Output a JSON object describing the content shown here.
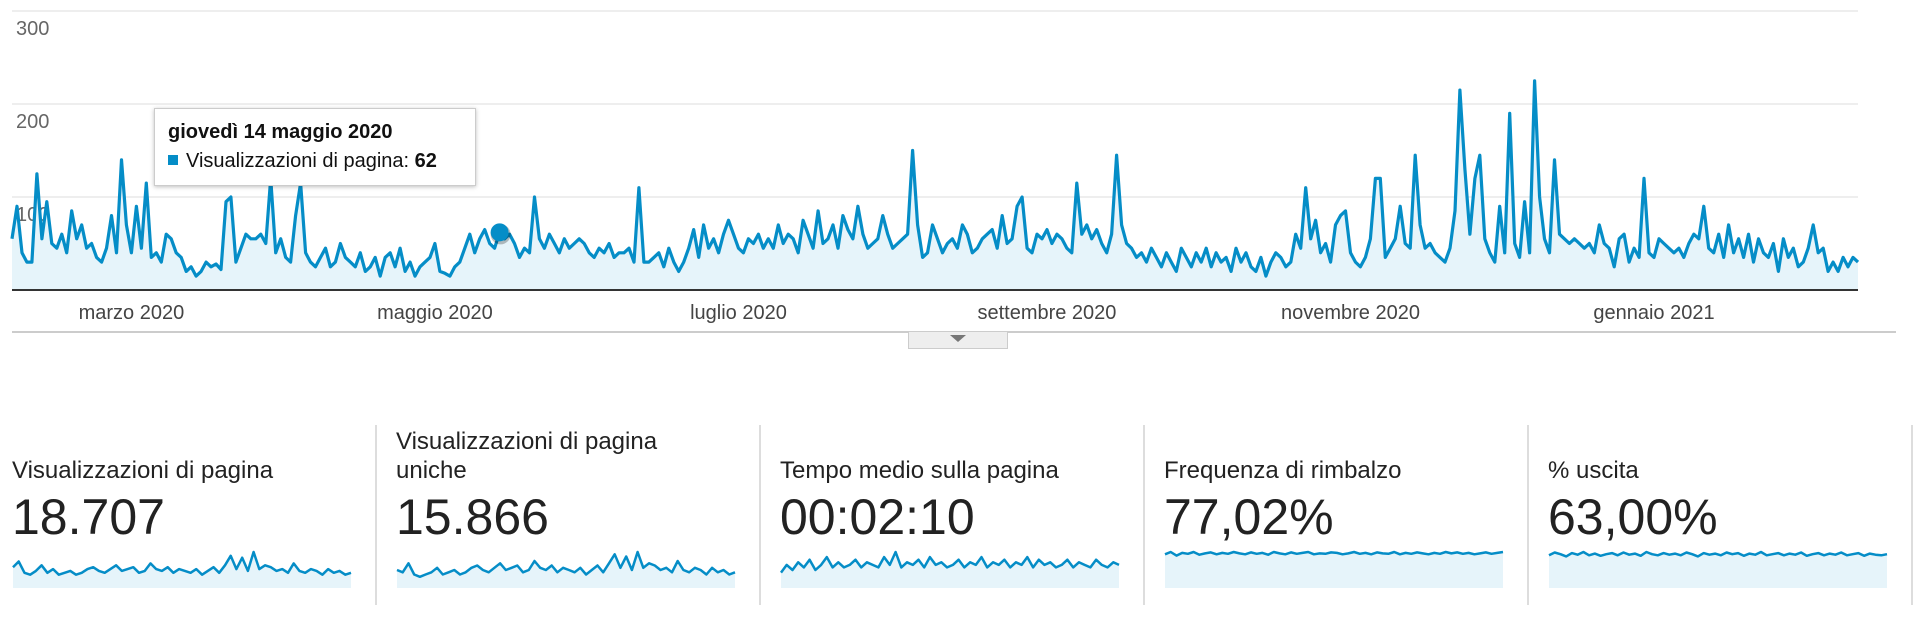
{
  "chart_data": {
    "type": "line",
    "categories": [
      null,
      null,
      null,
      null,
      null,
      null,
      null,
      null,
      null,
      null,
      null,
      null,
      null,
      null,
      null,
      null,
      null,
      null,
      null,
      null,
      null,
      null,
      null,
      null,
      "marzo 2020",
      null,
      null,
      null,
      null,
      null,
      null,
      null,
      null,
      null,
      null,
      null,
      null,
      null,
      null,
      null,
      null,
      null,
      null,
      null,
      null,
      null,
      null,
      null,
      null,
      null,
      null,
      null,
      null,
      null,
      null,
      null,
      null,
      null,
      null,
      null,
      null,
      null,
      null,
      null,
      null,
      null,
      null,
      null,
      null,
      null,
      null,
      null,
      null,
      null,
      null,
      null,
      null,
      null,
      null,
      null,
      null,
      null,
      null,
      null,
      null,
      "maggio 2020",
      null,
      null,
      null,
      null,
      null,
      null,
      null,
      null,
      null,
      null,
      null,
      null,
      null,
      null,
      null,
      null,
      null,
      null,
      null,
      null,
      null,
      null,
      null,
      null,
      null,
      null,
      null,
      null,
      null,
      null,
      null,
      null,
      null,
      null,
      null,
      null,
      null,
      null,
      null,
      null,
      null,
      null,
      null,
      null,
      null,
      null,
      null,
      null,
      null,
      null,
      null,
      null,
      null,
      null,
      null,
      null,
      null,
      null,
      null,
      null,
      "luglio 2020",
      null,
      null,
      null,
      null,
      null,
      null,
      null,
      null,
      null,
      null,
      null,
      null,
      null,
      null,
      null,
      null,
      null,
      null,
      null,
      null,
      null,
      null,
      null,
      null,
      null,
      null,
      null,
      null,
      null,
      null,
      null,
      null,
      null,
      null,
      null,
      null,
      null,
      null,
      null,
      null,
      null,
      null,
      null,
      null,
      null,
      null,
      null,
      null,
      null,
      null,
      null,
      null,
      null,
      null,
      null,
      null,
      null,
      null,
      null,
      null,
      null,
      "settembre 2020",
      null,
      null,
      null,
      null,
      null,
      null,
      null,
      null,
      null,
      null,
      null,
      null,
      null,
      null,
      null,
      null,
      null,
      null,
      null,
      null,
      null,
      null,
      null,
      null,
      null,
      null,
      null,
      null,
      null,
      null,
      null,
      null,
      null,
      null,
      null,
      null,
      null,
      null,
      null,
      null,
      null,
      null,
      null,
      null,
      null,
      null,
      null,
      null,
      null,
      null,
      null,
      null,
      null,
      null,
      null,
      null,
      null,
      null,
      null,
      null,
      "novembre 2020",
      null,
      null,
      null,
      null,
      null,
      null,
      null,
      null,
      null,
      null,
      null,
      null,
      null,
      null,
      null,
      null,
      null,
      null,
      null,
      null,
      null,
      null,
      null,
      null,
      null,
      null,
      null,
      null,
      null,
      null,
      null,
      null,
      null,
      null,
      null,
      null,
      null,
      null,
      null,
      null,
      null,
      null,
      null,
      null,
      null,
      null,
      null,
      null,
      null,
      null,
      null,
      null,
      null,
      null,
      null,
      null,
      null,
      null,
      null,
      null,
      "gennaio 2021",
      null,
      null,
      null,
      null,
      null,
      null,
      null,
      null,
      null,
      null,
      null,
      null,
      null,
      null,
      null,
      null,
      null,
      null,
      null,
      null,
      null,
      null,
      null,
      null,
      null,
      null,
      null,
      null,
      null,
      null,
      null,
      null,
      null,
      null,
      null,
      null,
      null,
      null,
      null,
      null,
      null
    ],
    "series": [
      {
        "color": "#058dc7",
        "values": [
          55,
          90,
          40,
          30,
          30,
          125,
          55,
          95,
          50,
          45,
          60,
          40,
          85,
          55,
          70,
          45,
          50,
          35,
          30,
          45,
          80,
          40,
          140,
          70,
          40,
          90,
          45,
          115,
          35,
          40,
          30,
          60,
          55,
          40,
          35,
          20,
          25,
          15,
          20,
          30,
          25,
          28,
          22,
          95,
          100,
          30,
          45,
          60,
          55,
          55,
          60,
          50,
          120,
          40,
          55,
          35,
          30,
          80,
          115,
          40,
          30,
          25,
          35,
          45,
          25,
          30,
          50,
          35,
          30,
          25,
          40,
          20,
          25,
          35,
          15,
          35,
          40,
          25,
          45,
          20,
          30,
          15,
          25,
          30,
          35,
          50,
          20,
          18,
          15,
          25,
          30,
          45,
          60,
          40,
          55,
          65,
          50,
          45,
          62,
          55,
          60,
          50,
          35,
          45,
          40,
          100,
          55,
          45,
          60,
          50,
          40,
          55,
          45,
          50,
          55,
          50,
          40,
          35,
          45,
          40,
          50,
          35,
          40,
          40,
          45,
          30,
          110,
          30,
          30,
          35,
          40,
          25,
          45,
          30,
          20,
          30,
          45,
          65,
          35,
          70,
          45,
          55,
          40,
          60,
          75,
          60,
          45,
          40,
          55,
          50,
          60,
          45,
          55,
          45,
          70,
          50,
          60,
          55,
          40,
          75,
          60,
          45,
          85,
          50,
          55,
          70,
          45,
          80,
          65,
          55,
          90,
          60,
          45,
          50,
          55,
          80,
          60,
          45,
          50,
          55,
          60,
          150,
          70,
          35,
          40,
          70,
          55,
          40,
          50,
          55,
          45,
          70,
          60,
          40,
          45,
          55,
          60,
          65,
          45,
          80,
          50,
          55,
          90,
          100,
          45,
          40,
          60,
          55,
          65,
          50,
          60,
          55,
          45,
          40,
          115,
          60,
          70,
          55,
          65,
          50,
          40,
          60,
          145,
          70,
          50,
          45,
          35,
          40,
          30,
          45,
          35,
          25,
          40,
          30,
          20,
          45,
          35,
          25,
          40,
          30,
          45,
          25,
          40,
          30,
          35,
          20,
          45,
          30,
          40,
          25,
          20,
          35,
          15,
          30,
          40,
          35,
          25,
          30,
          60,
          45,
          110,
          55,
          75,
          40,
          50,
          30,
          70,
          80,
          85,
          40,
          30,
          25,
          35,
          55,
          120,
          120,
          35,
          45,
          55,
          90,
          50,
          45,
          145,
          70,
          45,
          50,
          40,
          35,
          30,
          45,
          85,
          215,
          130,
          60,
          120,
          145,
          55,
          40,
          30,
          90,
          40,
          190,
          50,
          35,
          95,
          40,
          225,
          100,
          55,
          40,
          140,
          60,
          55,
          50,
          55,
          50,
          45,
          50,
          40,
          70,
          50,
          45,
          25,
          55,
          60,
          30,
          45,
          35,
          120,
          40,
          35,
          55,
          50,
          45,
          40,
          45,
          35,
          50,
          60,
          55,
          90,
          45,
          40,
          60,
          35,
          70,
          40,
          55,
          35,
          60,
          30,
          55,
          40,
          35,
          50,
          20,
          55,
          35,
          45,
          25,
          30,
          45,
          70,
          40,
          45,
          20,
          30,
          20,
          35,
          25,
          35,
          30
        ]
      }
    ],
    "ylim": [
      0,
      300
    ],
    "yticks": [
      100,
      200,
      300
    ],
    "grid": true,
    "tooltip": {
      "title": "giovedì 14 maggio 2020",
      "label": "Visualizzazioni di pagina:",
      "value": 62
    }
  },
  "scorecards": [
    {
      "label": "Visualizzazioni di pagina",
      "value": "18.707",
      "sparkline": [
        55,
        70,
        40,
        35,
        45,
        60,
        40,
        50,
        35,
        40,
        45,
        35,
        40,
        50,
        55,
        45,
        40,
        50,
        60,
        45,
        50,
        55,
        40,
        45,
        65,
        50,
        45,
        55,
        40,
        50,
        45,
        40,
        50,
        35,
        45,
        55,
        40,
        60,
        85,
        50,
        80,
        45,
        95,
        50,
        60,
        55,
        45,
        50,
        40,
        65,
        45,
        40,
        50,
        45,
        35,
        50,
        40,
        45,
        35,
        40
      ]
    },
    {
      "label": "Visualizzazioni di pagina uniche",
      "value": "15.866",
      "sparkline": [
        40,
        35,
        55,
        30,
        25,
        30,
        35,
        45,
        30,
        35,
        40,
        30,
        35,
        45,
        50,
        40,
        35,
        45,
        55,
        40,
        45,
        50,
        35,
        40,
        60,
        45,
        40,
        50,
        35,
        45,
        40,
        35,
        45,
        30,
        40,
        50,
        35,
        55,
        75,
        45,
        70,
        40,
        80,
        45,
        55,
        50,
        40,
        45,
        35,
        60,
        40,
        35,
        45,
        40,
        30,
        45,
        35,
        40,
        30,
        35
      ]
    },
    {
      "label": "Tempo medio sulla pagina",
      "value": "00:02:10",
      "sparkline": [
        30,
        45,
        35,
        50,
        40,
        55,
        35,
        45,
        60,
        40,
        50,
        40,
        45,
        55,
        40,
        50,
        45,
        40,
        60,
        45,
        70,
        40,
        50,
        45,
        55,
        40,
        60,
        45,
        50,
        40,
        45,
        55,
        40,
        50,
        45,
        60,
        40,
        50,
        45,
        55,
        40,
        50,
        45,
        60,
        40,
        55,
        45,
        50,
        40,
        45,
        55,
        40,
        50,
        45,
        40,
        55,
        45,
        40,
        50,
        45
      ]
    },
    {
      "label": "Frequenza di rimbalzo",
      "value": "77,02%",
      "sparkline": [
        75,
        80,
        72,
        78,
        76,
        80,
        74,
        77,
        79,
        75,
        78,
        76,
        80,
        77,
        75,
        79,
        76,
        78,
        74,
        80,
        77,
        75,
        79,
        76,
        78,
        80,
        75,
        77,
        76,
        79,
        78,
        75,
        77,
        80,
        76,
        78,
        75,
        79,
        77,
        76,
        80,
        75,
        78,
        76,
        79,
        77,
        75,
        78,
        76,
        80,
        77,
        79,
        76,
        78,
        75,
        77,
        79,
        76,
        78,
        80
      ]
    },
    {
      "label": "% uscita",
      "value": "63,00%",
      "sparkline": [
        60,
        65,
        62,
        58,
        64,
        61,
        66,
        60,
        63,
        59,
        62,
        64,
        60,
        65,
        61,
        63,
        59,
        66,
        62,
        60,
        64,
        61,
        63,
        60,
        65,
        62,
        58,
        64,
        61,
        63,
        60,
        65,
        62,
        64,
        59,
        63,
        61,
        66,
        60,
        62,
        64,
        60,
        63,
        61,
        65,
        59,
        62,
        64,
        60,
        63,
        61,
        65,
        60,
        62,
        64,
        59,
        63,
        61,
        60,
        62
      ]
    }
  ]
}
